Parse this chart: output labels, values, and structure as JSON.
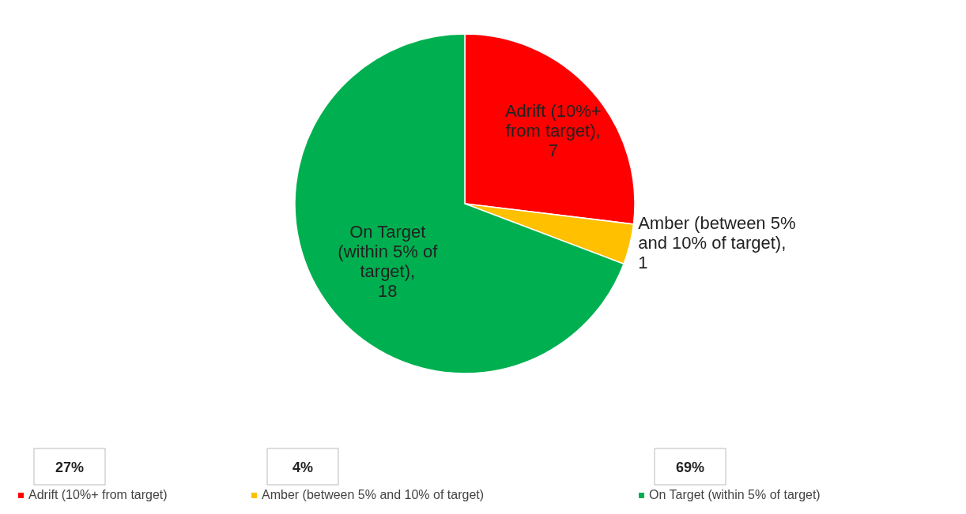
{
  "chart_data": {
    "type": "pie",
    "categories": [
      "Adrift (10%+ from target)",
      "Amber (between 5% and 10% of target)",
      "On Target (within 5% of target)"
    ],
    "values": [
      7,
      1,
      18
    ],
    "colors": [
      "#ff0000",
      "#ffc000",
      "#00b050"
    ],
    "value_labels": [
      "Adrift (10%+ from target), 7",
      "Amber (between 5% and 10% of target), 1",
      "On Target (within 5% of target), 18"
    ],
    "legend": "bottom",
    "annotations": [
      "27%",
      "4%",
      "69%"
    ]
  }
}
